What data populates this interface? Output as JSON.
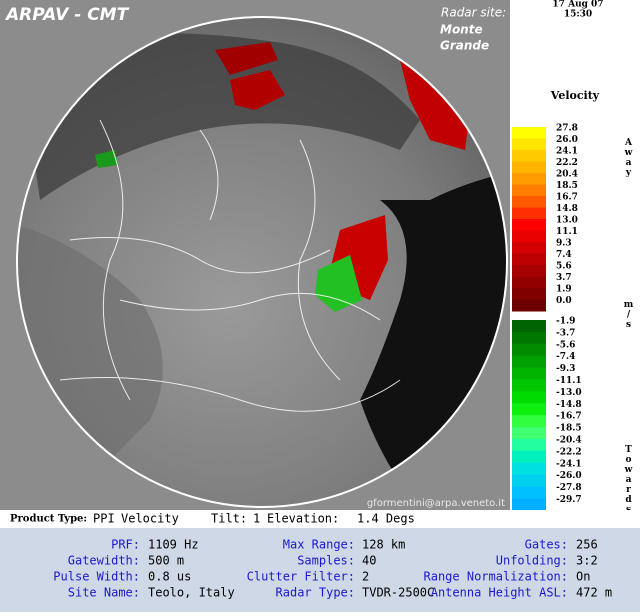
{
  "header": {
    "title": "ARPAV - CMT",
    "site_label": "Radar site:",
    "site_name_lines": [
      "Monte",
      "Grande"
    ],
    "date": "17 Aug 07",
    "time": "15:30"
  },
  "legend": {
    "title": "Velocity",
    "away": "Away",
    "unit": "m/s",
    "towards": "Towards",
    "positive": [
      {
        "label": "27.8",
        "color": "#ffff00"
      },
      {
        "label": "26.0",
        "color": "#ffe600"
      },
      {
        "label": "24.1",
        "color": "#ffcc00"
      },
      {
        "label": "22.2",
        "color": "#ffb400"
      },
      {
        "label": "20.4",
        "color": "#ff9c00"
      },
      {
        "label": "18.5",
        "color": "#ff7e00"
      },
      {
        "label": "16.7",
        "color": "#ff5a00"
      },
      {
        "label": "14.8",
        "color": "#ff3000"
      },
      {
        "label": "13.0",
        "color": "#ff0000"
      },
      {
        "label": "11.1",
        "color": "#e80000"
      },
      {
        "label": "9.3",
        "color": "#d20000"
      },
      {
        "label": "7.4",
        "color": "#bc0000"
      },
      {
        "label": "5.6",
        "color": "#a60000"
      },
      {
        "label": "3.7",
        "color": "#920000"
      },
      {
        "label": "1.9",
        "color": "#800000"
      },
      {
        "label": "0.0",
        "color": "#6c0000"
      }
    ],
    "negative": [
      {
        "label": "-1.9",
        "color": "#006400"
      },
      {
        "label": "-3.7",
        "color": "#007800"
      },
      {
        "label": "-5.6",
        "color": "#008c00"
      },
      {
        "label": "-7.4",
        "color": "#00a000"
      },
      {
        "label": "-9.3",
        "color": "#00b400"
      },
      {
        "label": "-11.1",
        "color": "#00c800"
      },
      {
        "label": "-13.0",
        "color": "#00dc00"
      },
      {
        "label": "-14.8",
        "color": "#10f010"
      },
      {
        "label": "-16.7",
        "color": "#30ff40"
      },
      {
        "label": "-18.5",
        "color": "#40ff70"
      },
      {
        "label": "-20.4",
        "color": "#20ffa0"
      },
      {
        "label": "-22.2",
        "color": "#00f0c0"
      },
      {
        "label": "-24.1",
        "color": "#00e0e0"
      },
      {
        "label": "-26.0",
        "color": "#00d0f0"
      },
      {
        "label": "-27.8",
        "color": "#00c0ff"
      },
      {
        "label": "-29.7",
        "color": "#00b0ff"
      }
    ]
  },
  "credit": "gformentini@arpa.veneto.it",
  "product": {
    "type_label": "Product Type:",
    "type": "PPI",
    "product": "Velocity",
    "tilt_label": "Tilt:",
    "tilt": "1",
    "elevation_label": "Elevation:",
    "elevation": "1.4 Degs"
  },
  "fields": [
    [
      {
        "label": "PRF:",
        "value": "1109 Hz"
      },
      {
        "label": "Max Range:",
        "value": "128 km"
      },
      {
        "label": "Gates:",
        "value": "256"
      }
    ],
    [
      {
        "label": "Gatewidth:",
        "value": "500 m"
      },
      {
        "label": "Samples:",
        "value": "40"
      },
      {
        "label": "Unfolding:",
        "value": "3:2"
      }
    ],
    [
      {
        "label": "Pulse Width:",
        "value": "0.8 us"
      },
      {
        "label": "Clutter Filter:",
        "value": "2"
      },
      {
        "label": "Range Normalization:",
        "value": "On"
      }
    ],
    [
      {
        "label": "Site Name:",
        "value": "Teolo, Italy"
      },
      {
        "label": "Radar Type:",
        "value": "TVDR-2500C"
      },
      {
        "label": "Antenna Height ASL:",
        "value": "472 m"
      }
    ]
  ]
}
